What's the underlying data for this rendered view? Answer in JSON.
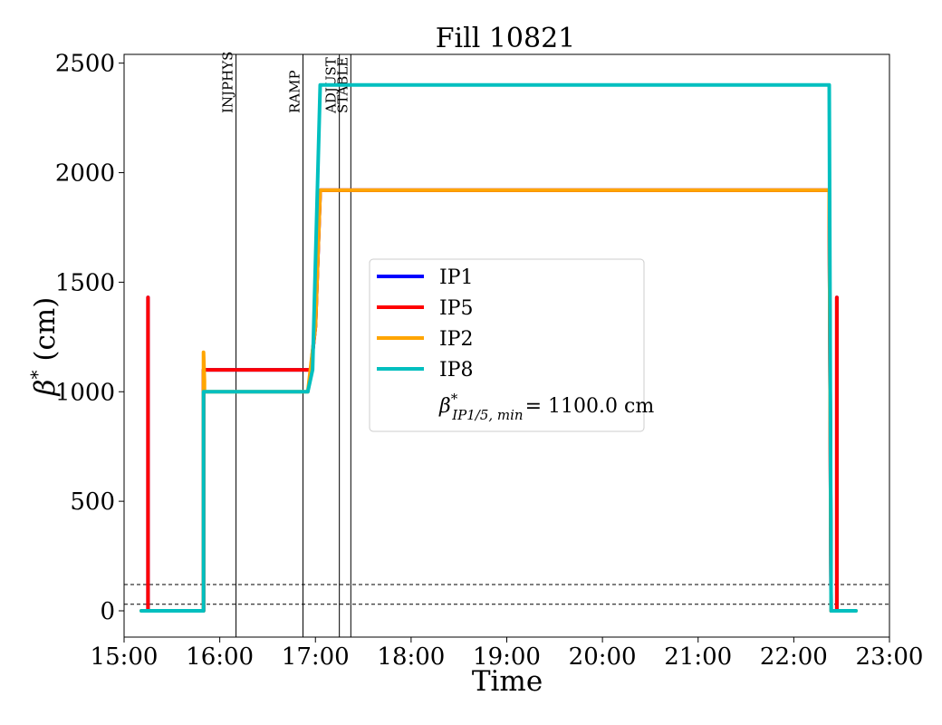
{
  "chart_data": {
    "type": "line",
    "title": "Fill 10821",
    "xlabel": "Time",
    "ylabel_symbol": "β",
    "ylabel_sup": "*",
    "ylabel_unit": "(cm)",
    "xlim": [
      15.0,
      23.0
    ],
    "ylim": [
      -120,
      2540
    ],
    "x_ticks": [
      {
        "value": 15,
        "label": "15:00"
      },
      {
        "value": 16,
        "label": "16:00"
      },
      {
        "value": 17,
        "label": "17:00"
      },
      {
        "value": 18,
        "label": "18:00"
      },
      {
        "value": 19,
        "label": "19:00"
      },
      {
        "value": 20,
        "label": "20:00"
      },
      {
        "value": 21,
        "label": "21:00"
      },
      {
        "value": 22,
        "label": "22:00"
      },
      {
        "value": 23,
        "label": "23:00"
      }
    ],
    "y_ticks": [
      {
        "value": 0,
        "label": "0"
      },
      {
        "value": 500,
        "label": "500"
      },
      {
        "value": 1000,
        "label": "1000"
      },
      {
        "value": 1500,
        "label": "1500"
      },
      {
        "value": 2000,
        "label": "2000"
      },
      {
        "value": 2500,
        "label": "2500"
      }
    ],
    "phases": [
      {
        "label": "INJPHYS",
        "x": 16.17
      },
      {
        "label": "RAMP",
        "x": 16.87
      },
      {
        "label": "ADJUST",
        "x": 17.25
      },
      {
        "label": "STABLE",
        "x": 17.37
      }
    ],
    "hlines": [
      30,
      120
    ],
    "series": [
      {
        "name": "IP1",
        "color": "#0000ff",
        "points": [
          [
            15.22,
            0
          ],
          [
            15.25,
            0
          ],
          [
            15.25,
            1430
          ],
          [
            15.25,
            0
          ],
          [
            15.83,
            0
          ],
          [
            15.83,
            1100
          ],
          [
            16.95,
            1100
          ],
          [
            17.0,
            1300
          ],
          [
            17.05,
            1920
          ],
          [
            22.37,
            1920
          ],
          [
            22.39,
            0
          ],
          [
            22.45,
            0
          ],
          [
            22.45,
            1430
          ],
          [
            22.45,
            0
          ],
          [
            22.48,
            0
          ]
        ]
      },
      {
        "name": "IP5",
        "color": "#ff0000",
        "points": [
          [
            15.22,
            0
          ],
          [
            15.25,
            0
          ],
          [
            15.25,
            1430
          ],
          [
            15.25,
            0
          ],
          [
            15.83,
            0
          ],
          [
            15.83,
            1100
          ],
          [
            16.95,
            1100
          ],
          [
            17.0,
            1300
          ],
          [
            17.05,
            1920
          ],
          [
            22.37,
            1920
          ],
          [
            22.39,
            0
          ],
          [
            22.45,
            0
          ],
          [
            22.45,
            1430
          ],
          [
            22.45,
            0
          ],
          [
            22.48,
            0
          ]
        ]
      },
      {
        "name": "IP2",
        "color": "#ffa500",
        "points": [
          [
            15.18,
            0
          ],
          [
            15.83,
            0
          ],
          [
            15.83,
            1180
          ],
          [
            15.84,
            1050
          ],
          [
            15.84,
            1000
          ],
          [
            16.92,
            1000
          ],
          [
            17.0,
            1300
          ],
          [
            17.05,
            1920
          ],
          [
            22.37,
            1920
          ],
          [
            22.39,
            0
          ],
          [
            22.65,
            0
          ]
        ]
      },
      {
        "name": "IP8",
        "color": "#00bfbf",
        "points": [
          [
            15.18,
            0
          ],
          [
            15.83,
            0
          ],
          [
            15.83,
            1000
          ],
          [
            16.92,
            1000
          ],
          [
            16.97,
            1100
          ],
          [
            17.02,
            1920
          ],
          [
            17.05,
            2400
          ],
          [
            22.37,
            2400
          ],
          [
            22.39,
            0
          ],
          [
            22.65,
            0
          ]
        ]
      }
    ],
    "legend": {
      "placement": "center",
      "note_prefix": "β",
      "note_sup": "*",
      "note_sub": "IP1/5, min",
      "note_value": "= 1100.0 cm"
    },
    "grid": false
  }
}
